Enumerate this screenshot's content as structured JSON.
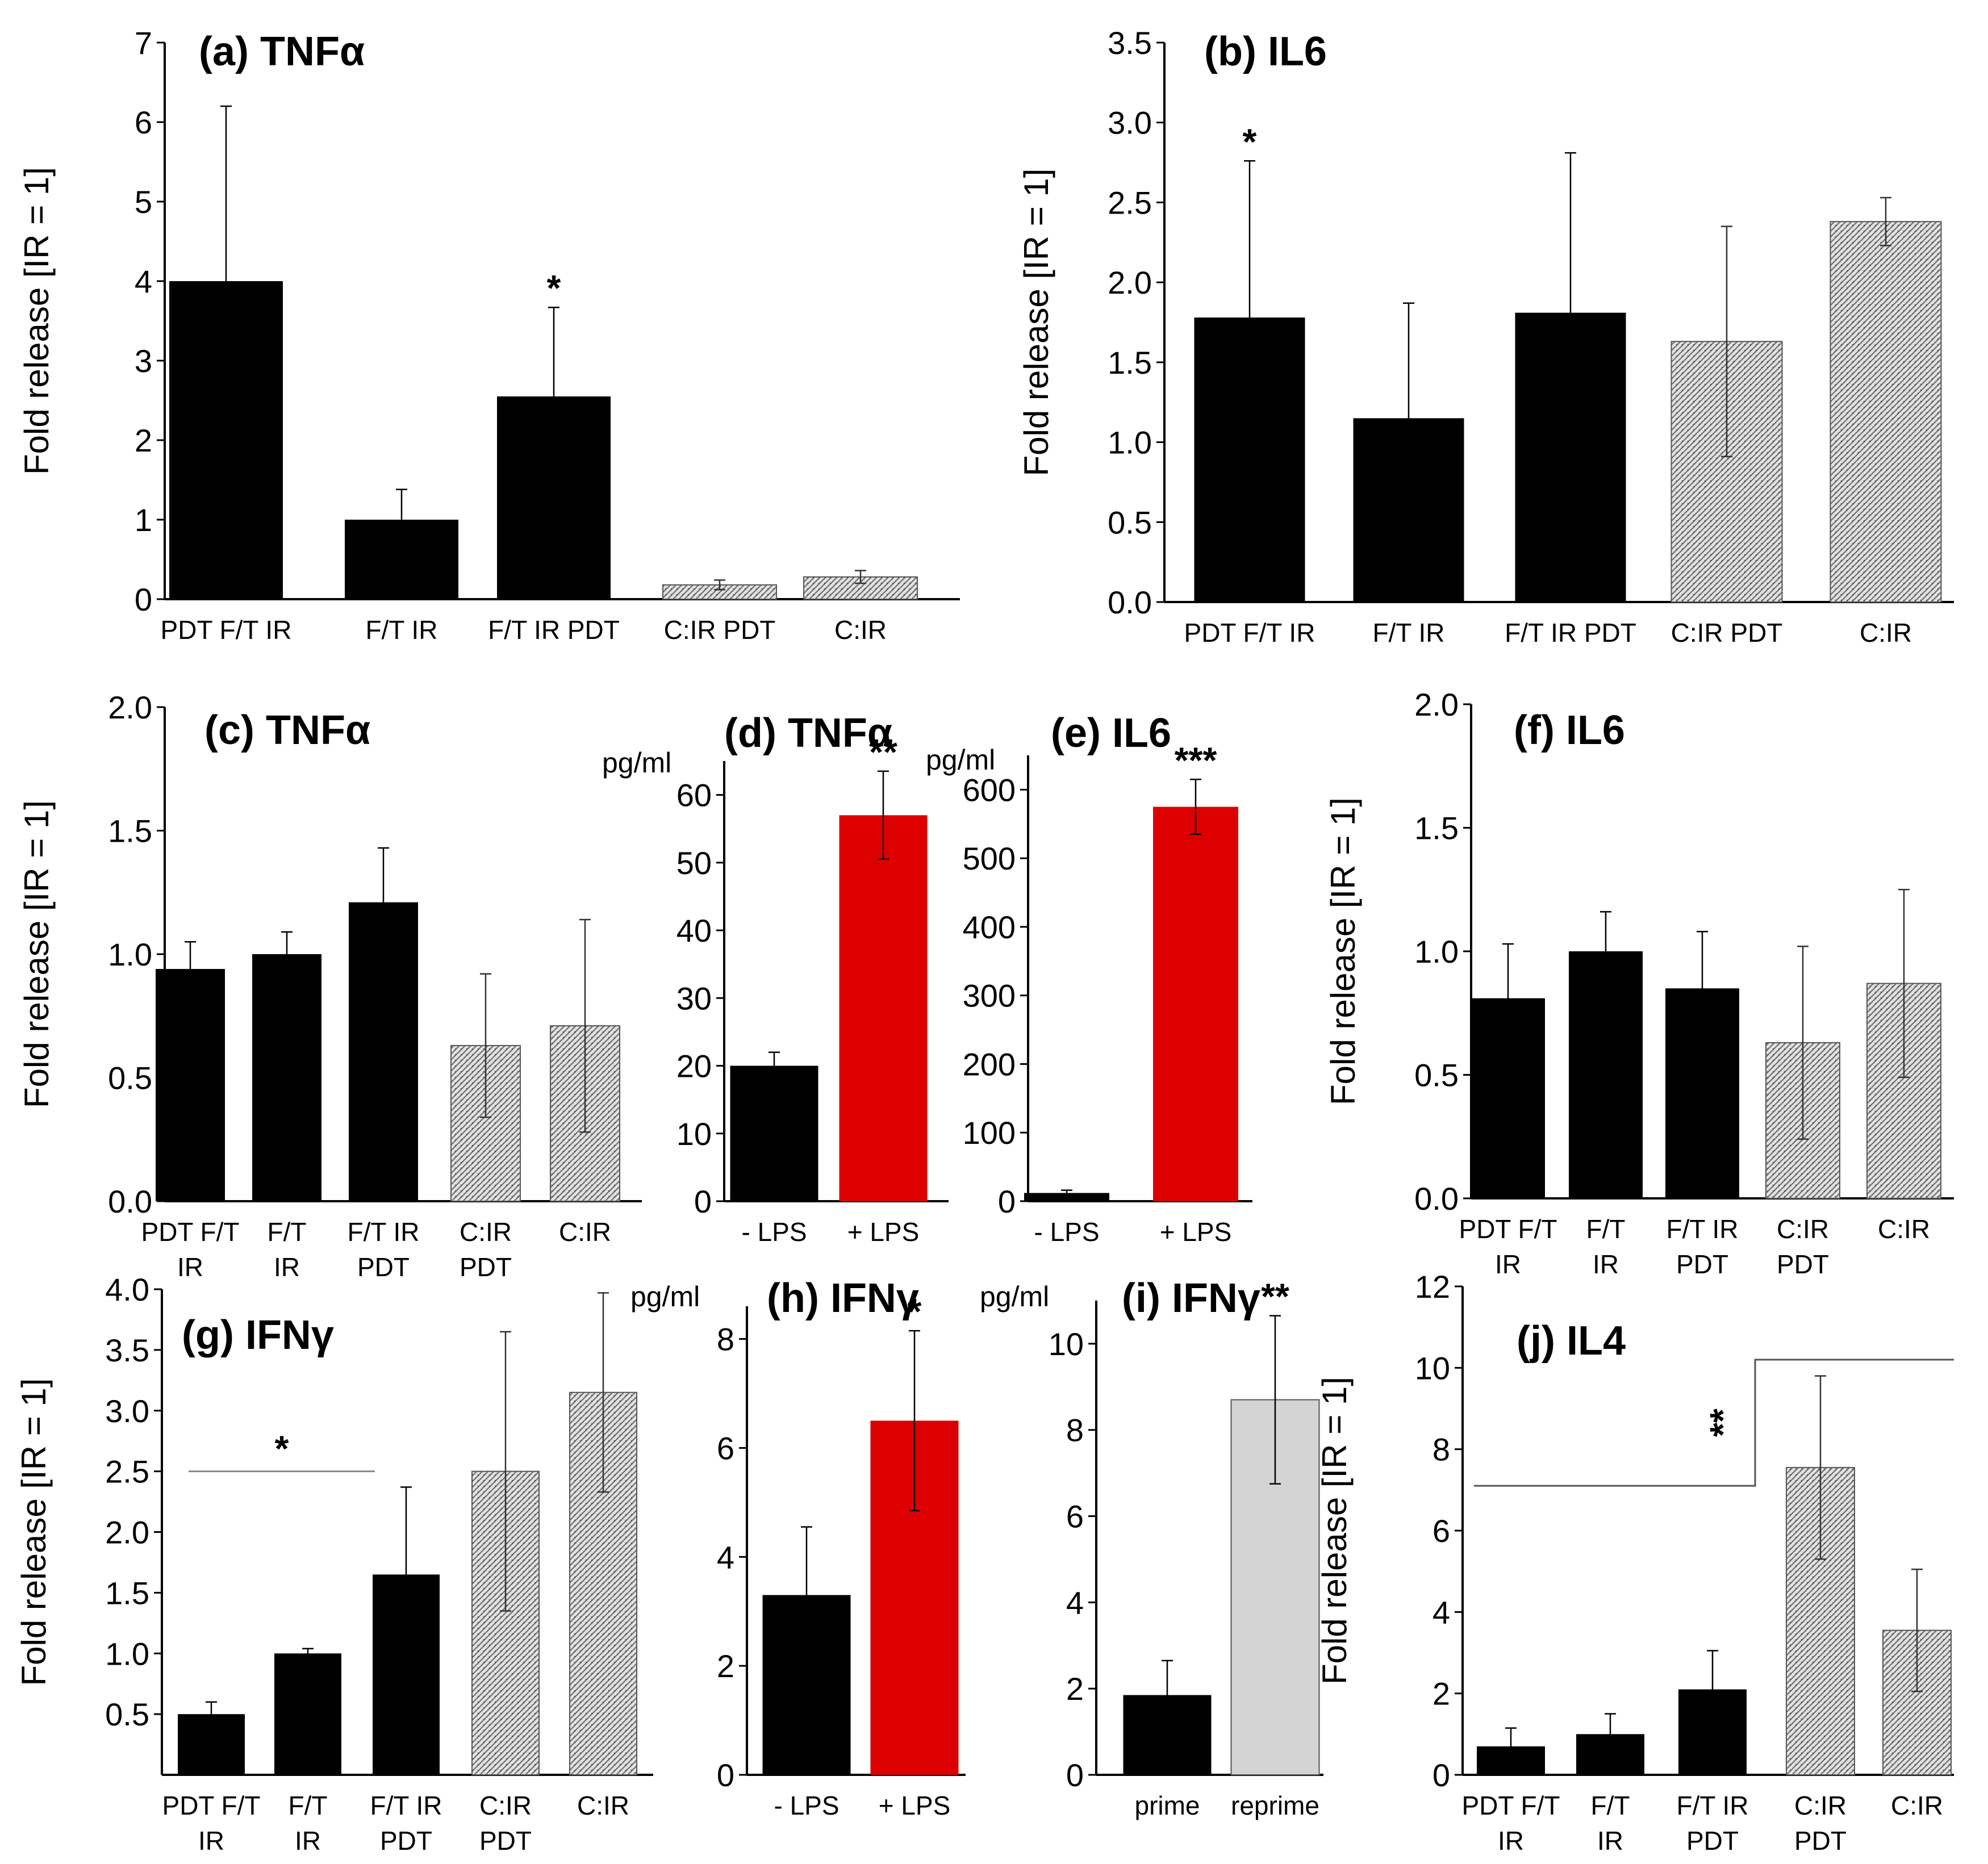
{
  "chart_data": [
    {
      "id": "a",
      "type": "bar",
      "title": "(a) TNFα",
      "ylabel": "Fold release [IR = 1]",
      "ylim": [
        0,
        7
      ],
      "yticks": [
        0,
        1,
        2,
        3,
        4,
        5,
        6,
        7
      ],
      "tick_decimals": 0,
      "categories": [
        "PDT F/T IR",
        "F/T IR",
        "F/T IR PDT",
        "C:IR PDT",
        "C:IR"
      ],
      "values": [
        4.0,
        1.0,
        2.55,
        0.18,
        0.28
      ],
      "errors": [
        2.2,
        0.38,
        1.12,
        0.06,
        0.08
      ],
      "styles": [
        "solid",
        "solid",
        "solid",
        "hatched",
        "hatched"
      ],
      "annotations": [
        {
          "category_index": 2,
          "text": "*"
        }
      ]
    },
    {
      "id": "b",
      "type": "bar",
      "title": "(b) IL6",
      "ylabel": "Fold release [IR = 1]",
      "ylim": [
        0,
        3.5
      ],
      "yticks": [
        0,
        0.5,
        1.0,
        1.5,
        2.0,
        2.5,
        3.0,
        3.5
      ],
      "tick_decimals": 1,
      "categories": [
        "PDT F/T IR",
        "F/T IR",
        "F/T IR PDT",
        "C:IR PDT",
        "C:IR"
      ],
      "values": [
        1.78,
        1.15,
        1.81,
        1.63,
        2.38
      ],
      "errors": [
        0.98,
        0.72,
        1.0,
        0.72,
        0.15
      ],
      "styles": [
        "solid",
        "solid",
        "solid",
        "hatched",
        "hatched"
      ],
      "annotations": [
        {
          "category_index": 0,
          "text": "*"
        }
      ]
    },
    {
      "id": "c",
      "type": "bar",
      "title": "(c) TNFα",
      "ylabel": "Fold release [IR = 1]",
      "ylim": [
        0,
        2.0
      ],
      "yticks": [
        0,
        0.5,
        1.0,
        1.5,
        2.0
      ],
      "tick_decimals": 1,
      "categories": [
        "PDT F/T IR",
        "F/T IR",
        "F/T IR PDT",
        "C:IR PDT",
        "C:IR"
      ],
      "values": [
        0.94,
        1.0,
        1.21,
        0.63,
        0.71
      ],
      "errors": [
        0.11,
        0.09,
        0.22,
        0.29,
        0.43
      ],
      "styles": [
        "solid",
        "solid",
        "solid",
        "hatched",
        "hatched"
      ],
      "annotations": []
    },
    {
      "id": "d",
      "type": "bar",
      "title": "(d) TNFα",
      "ylabel": "",
      "unit": "pg/ml",
      "ylim": [
        0,
        65
      ],
      "yticks": [
        0,
        10,
        20,
        30,
        40,
        50,
        60
      ],
      "tick_decimals": 0,
      "categories": [
        "- LPS",
        "+ LPS"
      ],
      "values": [
        20,
        57
      ],
      "errors": [
        2,
        6.5
      ],
      "styles": [
        "solid",
        "red"
      ],
      "annotations": [
        {
          "category_index": 1,
          "text": "**"
        }
      ]
    },
    {
      "id": "e",
      "type": "bar",
      "title": "(e) IL6",
      "ylabel": "",
      "unit": "pg/ml",
      "ylim": [
        0,
        650
      ],
      "yticks": [
        0,
        100,
        200,
        300,
        400,
        500,
        600
      ],
      "tick_decimals": 0,
      "categories": [
        "- LPS",
        "+ LPS"
      ],
      "values": [
        12,
        575
      ],
      "errors": [
        4,
        40
      ],
      "styles": [
        "solid",
        "red"
      ],
      "annotations": [
        {
          "category_index": 1,
          "text": "***"
        }
      ]
    },
    {
      "id": "f",
      "type": "bar",
      "title": "(f) IL6",
      "ylabel": "Fold release [IR = 1]",
      "ylim": [
        0,
        2.0
      ],
      "yticks": [
        0,
        0.5,
        1.0,
        1.5,
        2.0
      ],
      "tick_decimals": 1,
      "categories": [
        "PDT F/T IR",
        "F/T IR",
        "F/T IR PDT",
        "C:IR PDT",
        "C:IR"
      ],
      "values": [
        0.81,
        1.0,
        0.85,
        0.63,
        0.87
      ],
      "errors": [
        0.22,
        0.16,
        0.23,
        0.39,
        0.38
      ],
      "styles": [
        "solid",
        "solid",
        "solid",
        "hatched",
        "hatched"
      ],
      "annotations": []
    },
    {
      "id": "g",
      "type": "bar",
      "title": "(g) IFNγ",
      "ylabel": "Fold release [IR = 1]",
      "ylim": [
        0,
        4.0
      ],
      "yticks": [
        0.5,
        1.0,
        1.5,
        2.0,
        2.5,
        3.0,
        3.5,
        4.0
      ],
      "tick_decimals": 1,
      "categories": [
        "PDT F/T IR",
        "F/T IR",
        "F/T IR PDT",
        "C:IR PDT",
        "C:IR"
      ],
      "values": [
        0.5,
        1.0,
        1.65,
        2.5,
        3.15
      ],
      "errors": [
        0.1,
        0.04,
        0.72,
        1.15,
        0.82
      ],
      "styles": [
        "solid",
        "solid",
        "solid",
        "hatched",
        "hatched"
      ],
      "annotations": [
        {
          "span": [
            0,
            2
          ],
          "y": 2.5,
          "text": "*"
        }
      ]
    },
    {
      "id": "h",
      "type": "bar",
      "title": "(h) IFNγ",
      "ylabel": "",
      "unit": "pg/ml",
      "ylim": [
        0,
        8.6
      ],
      "yticks": [
        0,
        2,
        4,
        6,
        8
      ],
      "tick_decimals": 0,
      "categories": [
        "- LPS",
        "+ LPS"
      ],
      "values": [
        3.3,
        6.5
      ],
      "errors": [
        1.25,
        1.65
      ],
      "styles": [
        "solid",
        "red"
      ],
      "annotations": [
        {
          "category_index": 1,
          "text": "*"
        }
      ]
    },
    {
      "id": "i",
      "type": "bar",
      "title": "(i) IFNγ",
      "ylabel": "",
      "unit": "pg/ml",
      "ylim": [
        0,
        11
      ],
      "yticks": [
        0,
        2,
        4,
        6,
        8,
        10
      ],
      "tick_decimals": 0,
      "categories": [
        "prime",
        "reprime"
      ],
      "values": [
        1.85,
        8.7
      ],
      "errors": [
        0.8,
        1.95
      ],
      "styles": [
        "solid",
        "gray"
      ],
      "annotations": [
        {
          "category_index": 1,
          "text": "**"
        }
      ]
    },
    {
      "id": "j",
      "type": "bar",
      "title": "(j) IL4",
      "ylabel": "Fold release [IR = 1]",
      "ylim": [
        0,
        12
      ],
      "yticks": [
        0,
        2,
        4,
        6,
        8,
        10,
        12
      ],
      "tick_decimals": 0,
      "categories": [
        "PDT F/T IR",
        "F/T IR",
        "F/T IR PDT",
        "C:IR PDT",
        "C:IR"
      ],
      "values": [
        0.7,
        1.0,
        2.1,
        7.55,
        3.55
      ],
      "errors": [
        0.45,
        0.5,
        0.95,
        2.25,
        1.5
      ],
      "styles": [
        "solid",
        "solid",
        "solid",
        "hatched",
        "hatched"
      ],
      "annotations": [
        {
          "type": "bracket",
          "left_span": [
            0,
            2
          ],
          "left_y": 7.1,
          "right_span": [
            3,
            4
          ],
          "right_y": 10.2,
          "text": "**"
        }
      ]
    }
  ]
}
